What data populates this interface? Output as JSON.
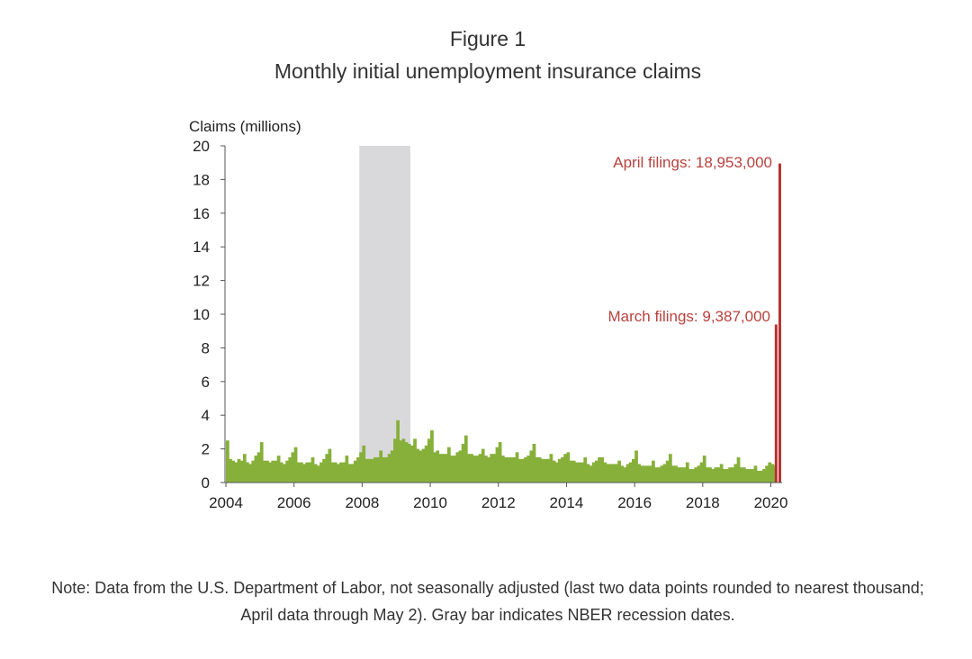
{
  "figure": {
    "label": "Figure 1",
    "title": "Monthly initial unemployment insurance claims",
    "note": "Note: Data from the U.S. Department of Labor, not seasonally adjusted (last two data points rounded to nearest thousand; April data through May 2). Gray bar indicates NBER recession dates."
  },
  "colors": {
    "bars": "#86b03a",
    "highlight": "#b8312f",
    "recession": "#d9d9dc",
    "annotation": "#b8413d"
  },
  "chart_data": {
    "type": "bar",
    "ylabel": "Claims (millions)",
    "ylim": [
      0,
      20
    ],
    "yticks": [
      0,
      2,
      4,
      6,
      8,
      10,
      12,
      14,
      16,
      18,
      20
    ],
    "xlim": [
      2004,
      2020.33
    ],
    "xticks": [
      2004,
      2006,
      2008,
      2010,
      2012,
      2014,
      2016,
      2018,
      2020
    ],
    "recession": {
      "start": "2007-12",
      "end": "2009-06"
    },
    "series": [
      {
        "start": "2004-01",
        "values": [
          2.5,
          1.4,
          1.3,
          1.2,
          1.4,
          1.3,
          1.7,
          1.2,
          1.1,
          1.3,
          1.6,
          1.8,
          2.4,
          1.3,
          1.3,
          1.2,
          1.3,
          1.3,
          1.6,
          1.2,
          1.1,
          1.3,
          1.5,
          1.8,
          2.1,
          1.2,
          1.2,
          1.1,
          1.2,
          1.2,
          1.5,
          1.1,
          1.0,
          1.2,
          1.4,
          1.7,
          2.0,
          1.2,
          1.2,
          1.1,
          1.2,
          1.2,
          1.6,
          1.1,
          1.1,
          1.3,
          1.5,
          1.8,
          2.2,
          1.4,
          1.4,
          1.4,
          1.5,
          1.5,
          1.9,
          1.5,
          1.5,
          1.7,
          1.9,
          2.6,
          3.7,
          2.5,
          2.6,
          2.4,
          2.3,
          2.2,
          2.6,
          2.0,
          1.9,
          2.0,
          2.2,
          2.6,
          3.1,
          1.8,
          1.9,
          1.7,
          1.7,
          1.7,
          2.1,
          1.6,
          1.6,
          1.8,
          1.9,
          2.3,
          2.8,
          1.7,
          1.7,
          1.6,
          1.6,
          1.7,
          2.0,
          1.6,
          1.5,
          1.7,
          1.7,
          2.1,
          2.4,
          1.6,
          1.5,
          1.5,
          1.5,
          1.5,
          1.8,
          1.4,
          1.4,
          1.5,
          1.6,
          1.9,
          2.3,
          1.5,
          1.5,
          1.4,
          1.4,
          1.4,
          1.7,
          1.3,
          1.2,
          1.4,
          1.5,
          1.7,
          1.8,
          1.3,
          1.3,
          1.2,
          1.2,
          1.2,
          1.5,
          1.1,
          1.0,
          1.2,
          1.3,
          1.5,
          1.5,
          1.2,
          1.1,
          1.1,
          1.1,
          1.1,
          1.3,
          1.0,
          0.9,
          1.1,
          1.2,
          1.4,
          1.9,
          1.1,
          1.0,
          1.0,
          1.0,
          1.0,
          1.3,
          0.9,
          0.9,
          1.0,
          1.1,
          1.3,
          1.7,
          1.0,
          1.0,
          0.9,
          0.9,
          0.9,
          1.2,
          0.8,
          0.8,
          0.9,
          1.0,
          1.2,
          1.6,
          0.9,
          0.9,
          0.8,
          0.9,
          0.9,
          1.1,
          0.8,
          0.8,
          0.9,
          0.9,
          1.1,
          1.5,
          0.9,
          0.9,
          0.8,
          0.8,
          0.8,
          1.0,
          0.7,
          0.7,
          0.8,
          1.0,
          1.2,
          1.1,
          1.0,
          9.387,
          18.953
        ]
      }
    ],
    "annotations": [
      {
        "text": "April filings: 18,953,000",
        "value": 18.953
      },
      {
        "text": "March filings: 9,387,000",
        "value": 9.387
      }
    ]
  }
}
